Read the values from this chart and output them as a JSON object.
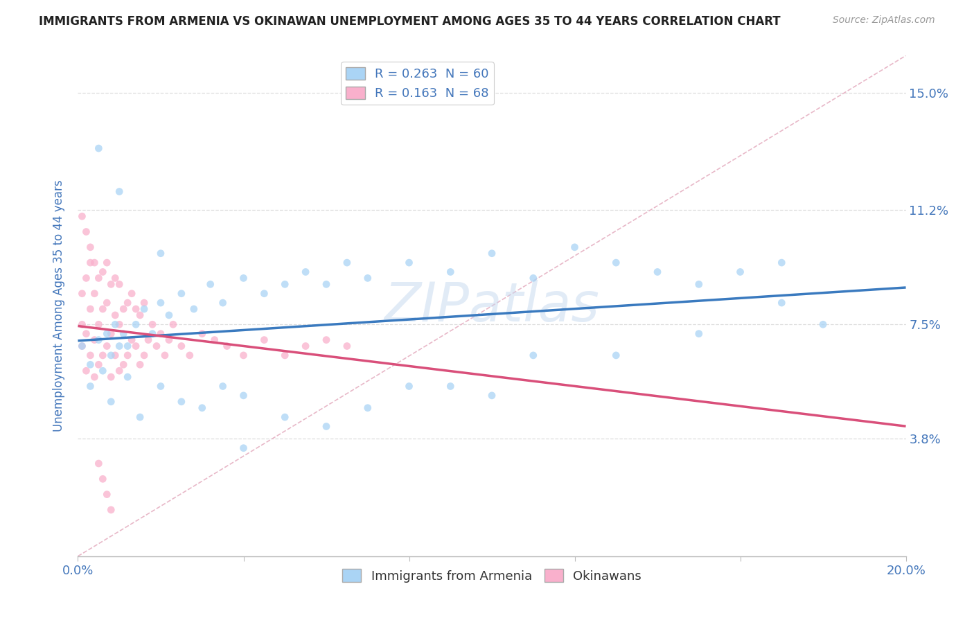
{
  "title": "IMMIGRANTS FROM ARMENIA VS OKINAWAN UNEMPLOYMENT AMONG AGES 35 TO 44 YEARS CORRELATION CHART",
  "source": "Source: ZipAtlas.com",
  "ylabel": "Unemployment Among Ages 35 to 44 years",
  "xlim": [
    0.0,
    0.2
  ],
  "ylim": [
    0.0,
    0.162
  ],
  "xtick_positions": [
    0.0,
    0.04,
    0.08,
    0.12,
    0.16,
    0.2
  ],
  "xticklabels": [
    "0.0%",
    "",
    "",
    "",
    "",
    "20.0%"
  ],
  "ytick_positions": [
    0.038,
    0.075,
    0.112,
    0.15
  ],
  "ytick_labels": [
    "3.8%",
    "7.5%",
    "11.2%",
    "15.0%"
  ],
  "legend_box_entries": [
    "R = 0.263  N = 60",
    "R = 0.163  N = 68"
  ],
  "legend_box_colors": [
    "#aad4f5",
    "#f9b0cc"
  ],
  "bottom_legend_labels": [
    "Immigrants from Armenia",
    "Okinawans"
  ],
  "bottom_legend_colors": [
    "#aad4f5",
    "#f9b0cc"
  ],
  "scatter_armenia_color": "#aad4f5",
  "scatter_okinawan_color": "#f9b0cc",
  "trendline_armenia_color": "#3a7abf",
  "trendline_okinawan_color": "#d94f7a",
  "diagonal_color": "#e8b8c8",
  "diagonal_linestyle": "--",
  "watermark": "ZIPatlas",
  "watermark_color": "#c5d8ef",
  "background_color": "#ffffff",
  "grid_color": "#dddddd",
  "title_color": "#222222",
  "axis_color": "#4477bb",
  "scatter_size": 60,
  "scatter_alpha": 0.75,
  "armenia_x": [
    0.001,
    0.003,
    0.005,
    0.007,
    0.008,
    0.009,
    0.01,
    0.011,
    0.012,
    0.014,
    0.016,
    0.018,
    0.02,
    0.022,
    0.025,
    0.028,
    0.032,
    0.035,
    0.04,
    0.045,
    0.05,
    0.055,
    0.06,
    0.065,
    0.07,
    0.08,
    0.09,
    0.1,
    0.11,
    0.12,
    0.13,
    0.14,
    0.15,
    0.16,
    0.17,
    0.18,
    0.003,
    0.006,
    0.008,
    0.012,
    0.015,
    0.02,
    0.025,
    0.03,
    0.035,
    0.04,
    0.05,
    0.06,
    0.07,
    0.08,
    0.09,
    0.1,
    0.11,
    0.13,
    0.15,
    0.17,
    0.005,
    0.01,
    0.02,
    0.04
  ],
  "armenia_y": [
    0.068,
    0.062,
    0.07,
    0.072,
    0.065,
    0.075,
    0.068,
    0.072,
    0.068,
    0.075,
    0.08,
    0.072,
    0.082,
    0.078,
    0.085,
    0.08,
    0.088,
    0.082,
    0.09,
    0.085,
    0.088,
    0.092,
    0.088,
    0.095,
    0.09,
    0.095,
    0.092,
    0.098,
    0.09,
    0.1,
    0.095,
    0.092,
    0.088,
    0.092,
    0.082,
    0.075,
    0.055,
    0.06,
    0.05,
    0.058,
    0.045,
    0.055,
    0.05,
    0.048,
    0.055,
    0.052,
    0.045,
    0.042,
    0.048,
    0.055,
    0.055,
    0.052,
    0.065,
    0.065,
    0.072,
    0.095,
    0.132,
    0.118,
    0.098,
    0.035
  ],
  "okinawan_x": [
    0.001,
    0.001,
    0.001,
    0.002,
    0.002,
    0.002,
    0.003,
    0.003,
    0.003,
    0.004,
    0.004,
    0.004,
    0.005,
    0.005,
    0.005,
    0.006,
    0.006,
    0.006,
    0.007,
    0.007,
    0.007,
    0.008,
    0.008,
    0.008,
    0.009,
    0.009,
    0.009,
    0.01,
    0.01,
    0.01,
    0.011,
    0.011,
    0.012,
    0.012,
    0.013,
    0.013,
    0.014,
    0.014,
    0.015,
    0.015,
    0.016,
    0.016,
    0.017,
    0.018,
    0.019,
    0.02,
    0.021,
    0.022,
    0.023,
    0.025,
    0.027,
    0.03,
    0.033,
    0.036,
    0.04,
    0.045,
    0.05,
    0.055,
    0.06,
    0.065,
    0.001,
    0.002,
    0.003,
    0.004,
    0.005,
    0.006,
    0.007,
    0.008
  ],
  "okinawan_y": [
    0.068,
    0.075,
    0.085,
    0.06,
    0.072,
    0.09,
    0.065,
    0.08,
    0.095,
    0.058,
    0.07,
    0.085,
    0.062,
    0.075,
    0.09,
    0.065,
    0.08,
    0.092,
    0.068,
    0.082,
    0.095,
    0.058,
    0.072,
    0.088,
    0.065,
    0.078,
    0.09,
    0.06,
    0.075,
    0.088,
    0.062,
    0.08,
    0.065,
    0.082,
    0.07,
    0.085,
    0.068,
    0.08,
    0.062,
    0.078,
    0.065,
    0.082,
    0.07,
    0.075,
    0.068,
    0.072,
    0.065,
    0.07,
    0.075,
    0.068,
    0.065,
    0.072,
    0.07,
    0.068,
    0.065,
    0.07,
    0.065,
    0.068,
    0.07,
    0.068,
    0.11,
    0.105,
    0.1,
    0.095,
    0.03,
    0.025,
    0.02,
    0.015
  ]
}
